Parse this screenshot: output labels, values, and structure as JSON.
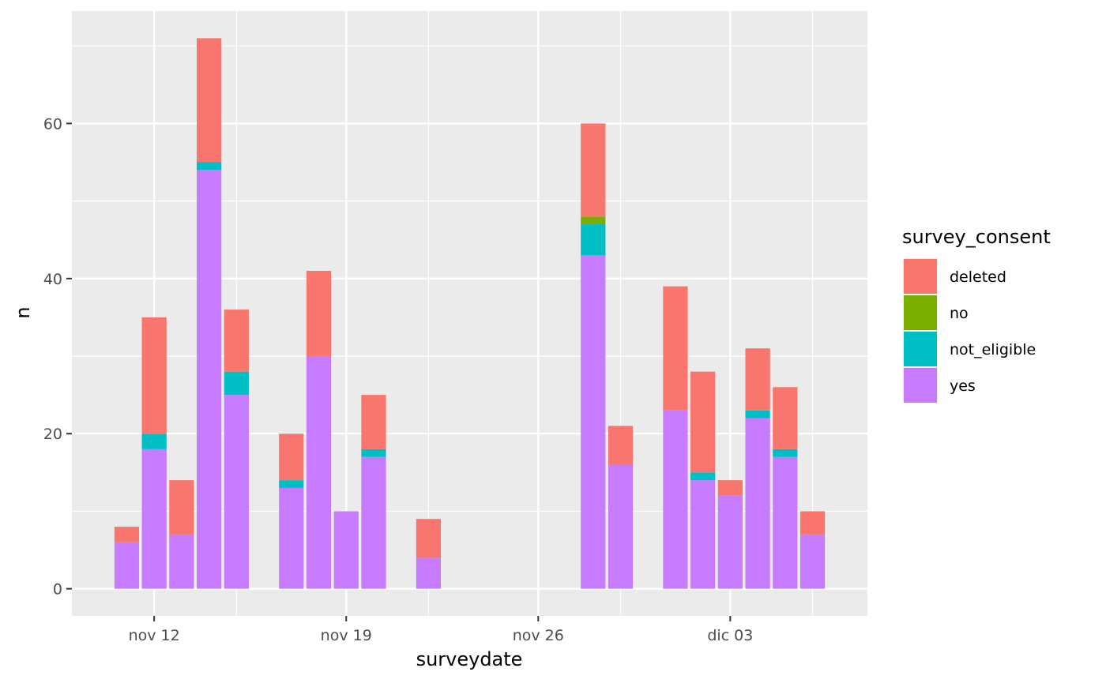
{
  "chart_data": {
    "type": "bar",
    "stacked": true,
    "xlabel": "surveydate",
    "ylabel": "n",
    "x_ticks": [
      "nov 12",
      "nov 19",
      "nov 26",
      "dic 03"
    ],
    "y_ticks": [
      "0",
      "20",
      "40",
      "60"
    ],
    "ylim": [
      -3.5,
      74.5
    ],
    "grid": true,
    "legend_position": "right",
    "legend_title": "survey_consent",
    "series": [
      {
        "name": "deleted",
        "color": "#F8766D"
      },
      {
        "name": "no",
        "color": "#7CAE00"
      },
      {
        "name": "not_eligible",
        "color": "#00BFC4"
      },
      {
        "name": "yes",
        "color": "#C77CFF"
      }
    ],
    "bars": [
      {
        "date": "2022-11-11",
        "yes": 6,
        "not_eligible": 0,
        "no": 0,
        "deleted": 2
      },
      {
        "date": "2022-11-12",
        "yes": 18,
        "not_eligible": 2,
        "no": 0,
        "deleted": 15
      },
      {
        "date": "2022-11-13",
        "yes": 7,
        "not_eligible": 0,
        "no": 0,
        "deleted": 7
      },
      {
        "date": "2022-11-14",
        "yes": 54,
        "not_eligible": 1,
        "no": 0,
        "deleted": 16
      },
      {
        "date": "2022-11-15",
        "yes": 25,
        "not_eligible": 3,
        "no": 0,
        "deleted": 8
      },
      {
        "date": "2022-11-17",
        "yes": 13,
        "not_eligible": 1,
        "no": 0,
        "deleted": 6
      },
      {
        "date": "2022-11-18",
        "yes": 30,
        "not_eligible": 0,
        "no": 0,
        "deleted": 11
      },
      {
        "date": "2022-11-19",
        "yes": 10,
        "not_eligible": 0,
        "no": 0,
        "deleted": 0
      },
      {
        "date": "2022-11-20",
        "yes": 17,
        "not_eligible": 1,
        "no": 0,
        "deleted": 7
      },
      {
        "date": "2022-11-22",
        "yes": 4,
        "not_eligible": 0,
        "no": 0,
        "deleted": 5
      },
      {
        "date": "2022-11-28",
        "yes": 43,
        "not_eligible": 4,
        "no": 1,
        "deleted": 12
      },
      {
        "date": "2022-11-29",
        "yes": 16,
        "not_eligible": 0,
        "no": 0,
        "deleted": 5
      },
      {
        "date": "2022-12-01",
        "yes": 23,
        "not_eligible": 0,
        "no": 0,
        "deleted": 16
      },
      {
        "date": "2022-12-02",
        "yes": 14,
        "not_eligible": 1,
        "no": 0,
        "deleted": 13
      },
      {
        "date": "2022-12-03",
        "yes": 12,
        "not_eligible": 0,
        "no": 0,
        "deleted": 2
      },
      {
        "date": "2022-12-04",
        "yes": 22,
        "not_eligible": 1,
        "no": 0,
        "deleted": 8
      },
      {
        "date": "2022-12-05",
        "yes": 17,
        "not_eligible": 1,
        "no": 0,
        "deleted": 8
      },
      {
        "date": "2022-12-06",
        "yes": 7,
        "not_eligible": 0,
        "no": 0,
        "deleted": 3
      }
    ],
    "xlim": [
      "2022-11-09",
      "2022-12-08"
    ],
    "x_tick_dates": [
      "2022-11-12",
      "2022-11-19",
      "2022-11-26",
      "2022-12-03"
    ],
    "x_minor_dates": [
      "2022-11-15",
      "2022-11-22",
      "2022-11-29",
      "2022-12-06"
    ],
    "y_tick_values": [
      0,
      20,
      40,
      60
    ],
    "y_minor_values": [
      10,
      30,
      50,
      70
    ]
  }
}
